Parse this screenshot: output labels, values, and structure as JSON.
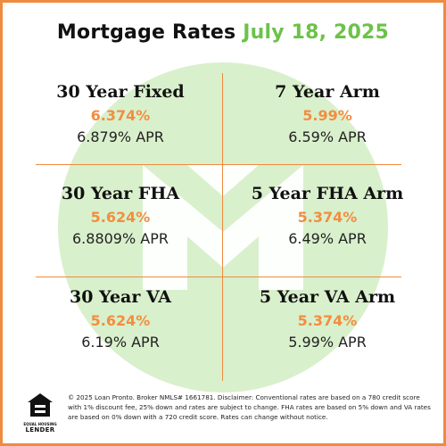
{
  "header": {
    "title": "Mortgage Rates",
    "date": "July 18, 2025"
  },
  "colors": {
    "border": "#f08a3e",
    "rate": "#f28e3f",
    "date": "#6cc24a",
    "watermark": "#d9f0cc"
  },
  "rates": [
    {
      "name": "30 Year Fixed",
      "rate": "6.374%",
      "apr": "6.879% APR"
    },
    {
      "name": "7 Year Arm",
      "rate": "5.99%",
      "apr": "6.59% APR"
    },
    {
      "name": "30 Year FHA",
      "rate": "5.624%",
      "apr": "6.8809% APR"
    },
    {
      "name": "5 Year FHA Arm",
      "rate": "5.374%",
      "apr": "6.49% APR"
    },
    {
      "name": "30 Year VA",
      "rate": "5.624%",
      "apr": "6.19% APR"
    },
    {
      "name": "5 Year VA Arm",
      "rate": "5.374%",
      "apr": "5.99% APR"
    }
  ],
  "footer": {
    "logo_caption": "EQUAL HOUSING",
    "logo_lender": "LENDER",
    "icon": "equal-housing-icon",
    "disclaimer": "© 2025 Loan Pronto. Broker NMLS# 1661781. Disclaimer: Conventional rates are based on a 780 credit score with 1% discount fee, 25% down and rates are subject to change. FHA rates are based on 5% down and VA rates are based on 0% down with a 720 credit score. Rates can change without notice."
  }
}
